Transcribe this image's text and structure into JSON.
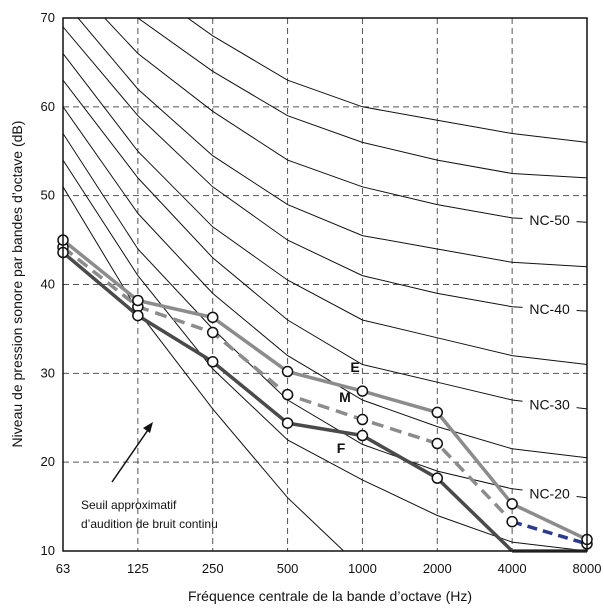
{
  "chart_data": {
    "type": "line",
    "xlabel": "Fréquence centrale de la bande d’octave (Hz)",
    "ylabel": "Niveau de pression sonore par bandes d’octave (dB)",
    "x": [
      63,
      125,
      250,
      500,
      1000,
      2000,
      4000,
      8000
    ],
    "x_tick_labels": [
      "63",
      "125",
      "250",
      "500",
      "1000",
      "2000",
      "4000",
      "8000"
    ],
    "y_ticks": [
      10,
      20,
      30,
      40,
      50,
      60,
      70
    ],
    "ylim": [
      10,
      70
    ],
    "x_scale": "log",
    "grid": true,
    "nc_curves": [
      {
        "label": "",
        "values": [
          51,
          37,
          26,
          16,
          8,
          null,
          null,
          null
        ]
      },
      {
        "label": "",
        "values": [
          54,
          41,
          30.5,
          22.5,
          18,
          14,
          11,
          10
        ]
      },
      {
        "label": "NC-20",
        "values": [
          57,
          44,
          35,
          27,
          22,
          19,
          17,
          16
        ]
      },
      {
        "label": "",
        "values": [
          60,
          48,
          39,
          32,
          27,
          24,
          21.5,
          20.5
        ]
      },
      {
        "label": "NC-30",
        "values": [
          63,
          52,
          43,
          36,
          31,
          29,
          27,
          26
        ]
      },
      {
        "label": "",
        "values": [
          66,
          55,
          46.5,
          40.5,
          36,
          34,
          32,
          31
        ]
      },
      {
        "label": "NC-40",
        "values": [
          69,
          59,
          51,
          45,
          41,
          39,
          37.5,
          37
        ]
      },
      {
        "label": "",
        "values": [
          72,
          62,
          54.5,
          49,
          45.5,
          44,
          42.5,
          42
        ]
      },
      {
        "label": "NC-50",
        "values": [
          75,
          66,
          59.5,
          54,
          51,
          49,
          47.5,
          47
        ]
      },
      {
        "label": "",
        "values": [
          78,
          70,
          64,
          59,
          56,
          54,
          52.5,
          52
        ]
      },
      {
        "label": "",
        "values": [
          81,
          74,
          68,
          63,
          60,
          58.5,
          57,
          56
        ]
      }
    ],
    "series": [
      {
        "name": "E",
        "style": "solid",
        "color": "#8c8c8c",
        "values": [
          45,
          38.2,
          36.3,
          30.2,
          28,
          25.6,
          15.3,
          11.3
        ]
      },
      {
        "name": "M",
        "style": "dashed",
        "color": "#8c8c8c",
        "values": [
          44.2,
          37.5,
          34.6,
          27.6,
          24.8,
          22.1,
          13.3,
          10.8
        ]
      },
      {
        "name": "F",
        "style": "solid",
        "color": "#4a4a4a",
        "values": [
          43.6,
          36.5,
          31.3,
          24.4,
          23,
          18.2,
          10,
          10
        ]
      }
    ],
    "annotation": {
      "line1": "Seuil approximatif",
      "line2": "d’audition de bruit continu"
    }
  },
  "colors": {
    "grid": "#555555",
    "nc_curve": "#111111",
    "tail_dash": "#2b3b8f"
  }
}
